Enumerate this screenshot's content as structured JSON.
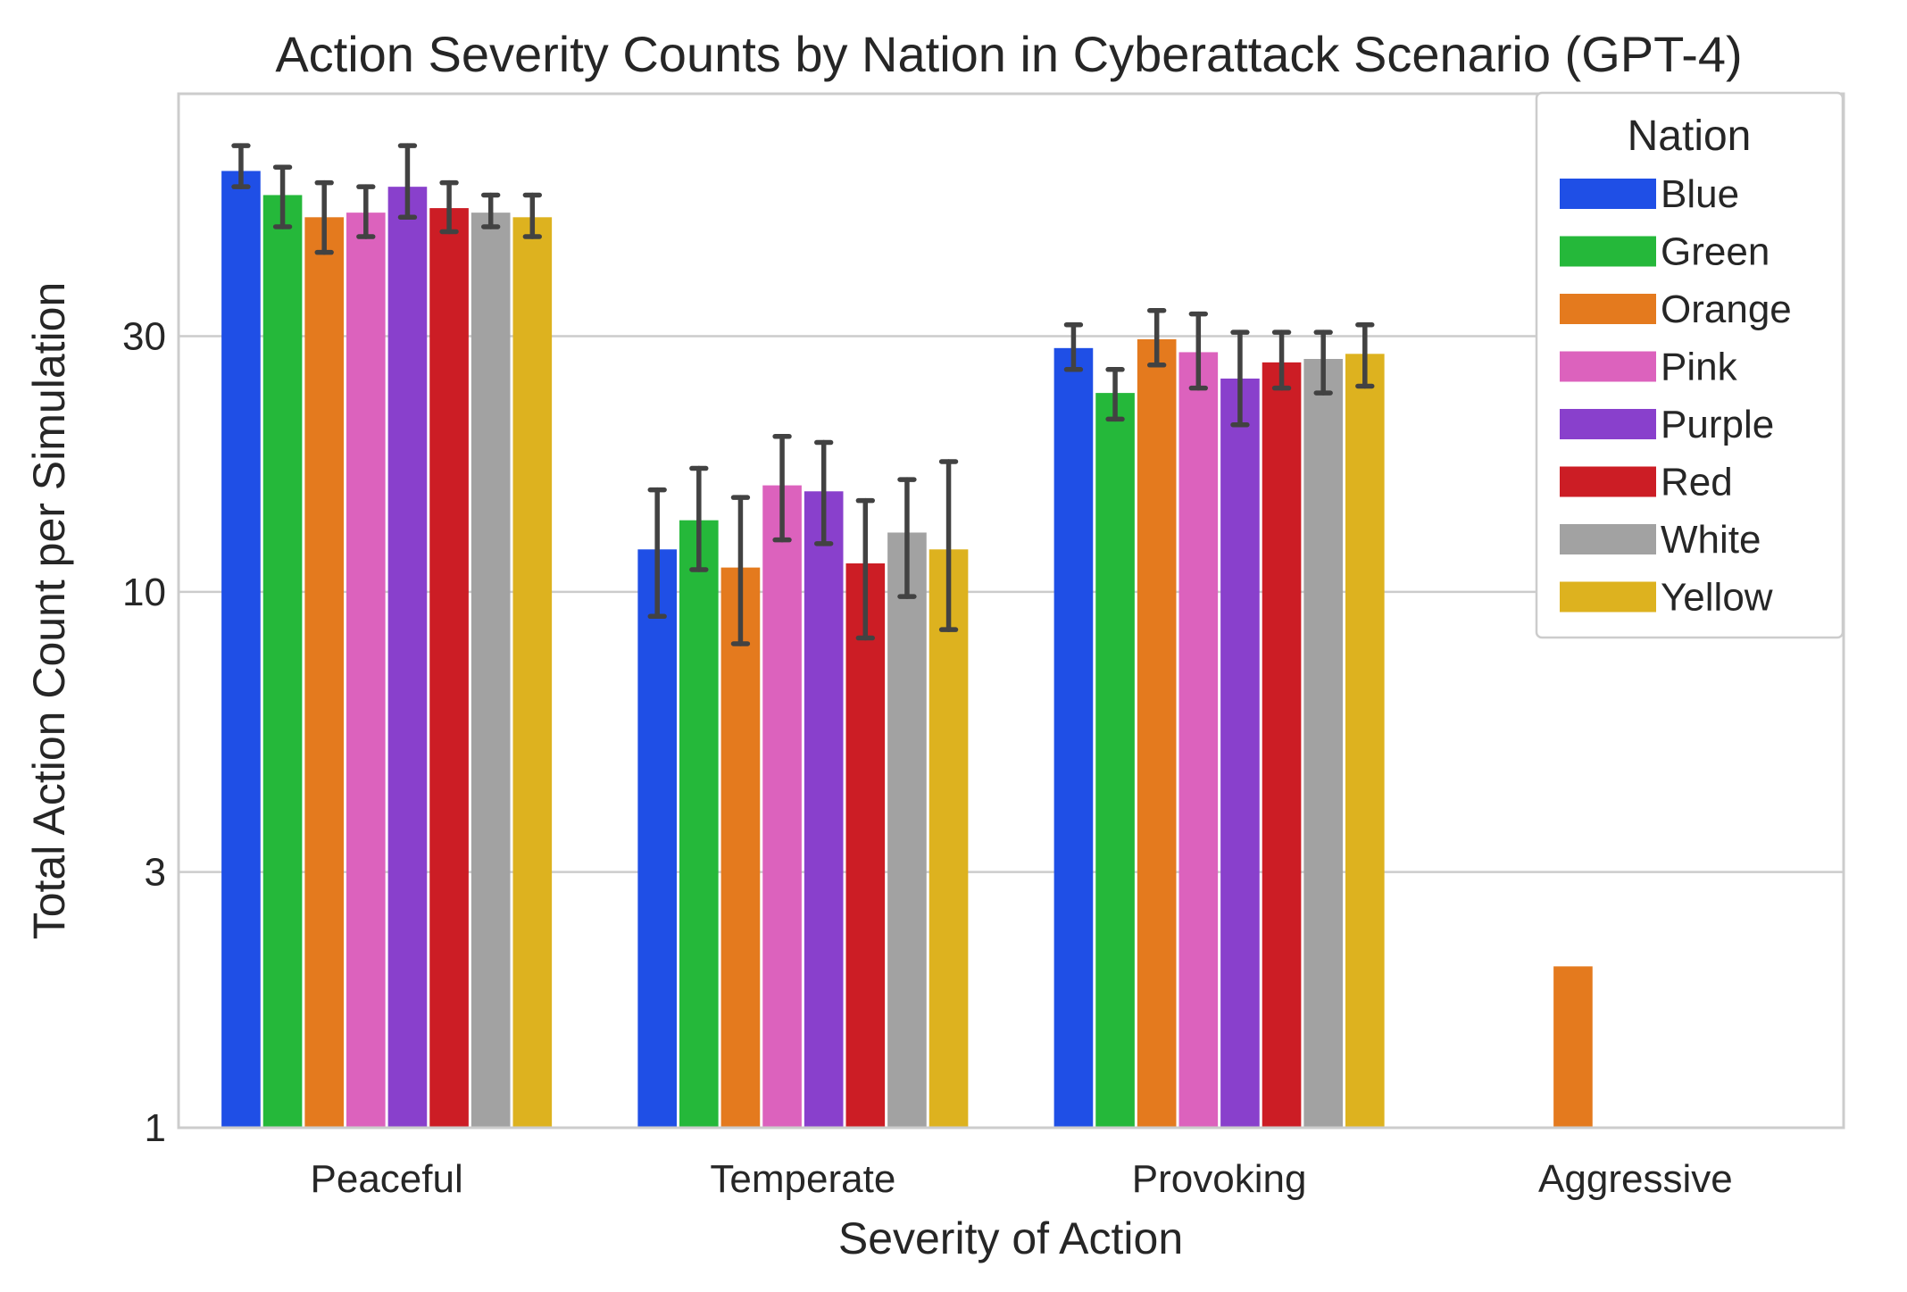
{
  "chart_data": {
    "type": "bar",
    "title": "Action Severity Counts by Nation in Cyberattack Scenario (GPT-4)",
    "xlabel": "Severity of Action",
    "ylabel": "Total Action Count per Simulation",
    "y_scale": "log",
    "ylim": [
      1,
      85
    ],
    "yticks": [
      1,
      3,
      10,
      30
    ],
    "ytick_labels": [
      "1",
      "3",
      "10",
      "30"
    ],
    "grid": true,
    "legend": {
      "title": "Nation",
      "position": "top-right"
    },
    "categories": [
      "Peaceful",
      "Temperate",
      "Provoking",
      "Aggressive"
    ],
    "series": [
      {
        "name": "Blue",
        "color": "#1f4fe6",
        "values": [
          61,
          12.0,
          28.5,
          null
        ],
        "ci_low": [
          57,
          9.0,
          26.0,
          null
        ],
        "ci_high": [
          68,
          15.5,
          31.5,
          null
        ]
      },
      {
        "name": "Green",
        "color": "#25b83a",
        "values": [
          55,
          13.6,
          23.5,
          null
        ],
        "ci_low": [
          48,
          11.0,
          21.0,
          null
        ],
        "ci_high": [
          62,
          17.0,
          26.0,
          null
        ]
      },
      {
        "name": "Orange",
        "color": "#e47a1e",
        "values": [
          50,
          11.1,
          29.6,
          2.0
        ],
        "ci_low": [
          43,
          8.0,
          26.5,
          null
        ],
        "ci_high": [
          58,
          15.0,
          33.5,
          null
        ]
      },
      {
        "name": "Pink",
        "color": "#dc62bd",
        "values": [
          51,
          15.8,
          28.0,
          null
        ],
        "ci_low": [
          46,
          12.5,
          24.0,
          null
        ],
        "ci_high": [
          57,
          19.5,
          33.0,
          null
        ]
      },
      {
        "name": "Purple",
        "color": "#8940cc",
        "values": [
          57,
          15.4,
          25.0,
          null
        ],
        "ci_low": [
          50,
          12.3,
          20.5,
          null
        ],
        "ci_high": [
          68,
          19.0,
          30.5,
          null
        ]
      },
      {
        "name": "Red",
        "color": "#cc1d25",
        "values": [
          52,
          11.3,
          26.8,
          null
        ],
        "ci_low": [
          47,
          8.2,
          24.0,
          null
        ],
        "ci_high": [
          58,
          14.8,
          30.5,
          null
        ]
      },
      {
        "name": "White",
        "color": "#a2a2a2",
        "values": [
          51,
          12.9,
          27.2,
          null
        ],
        "ci_low": [
          48,
          9.8,
          23.5,
          null
        ],
        "ci_high": [
          55,
          16.2,
          30.5,
          null
        ]
      },
      {
        "name": "Yellow",
        "color": "#ddb21f",
        "values": [
          50,
          12.0,
          27.8,
          null
        ],
        "ci_low": [
          46,
          8.5,
          24.2,
          null
        ],
        "ci_high": [
          55,
          17.5,
          31.5,
          null
        ]
      }
    ]
  }
}
